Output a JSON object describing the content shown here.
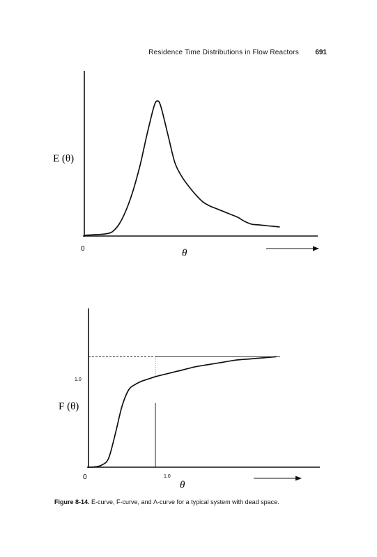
{
  "header": {
    "running_title": "Residence Time Distributions in Flow Reactors",
    "page_number": "691"
  },
  "caption": {
    "label": "Figure 8-14.",
    "text": " E-curve, F-curve, and Λ-curve for a typical system with dead space."
  },
  "chart_data": [
    {
      "type": "line",
      "ylabel": "E (θ)",
      "xlabel": "θ",
      "x_origin_label": "0",
      "xlim": [
        0,
        3.0
      ],
      "ylim": [
        0,
        1.0
      ],
      "grid": false,
      "series": [
        {
          "x": [
            0.0,
            0.1,
            0.2,
            0.3,
            0.4,
            0.5,
            0.6,
            0.7,
            0.8,
            0.9,
            1.0,
            1.05,
            1.1,
            1.2,
            1.3,
            1.4,
            1.5,
            1.6,
            1.7,
            1.8,
            1.9,
            2.0,
            2.1,
            2.2,
            2.3,
            2.4,
            2.5,
            2.6,
            2.7,
            2.8
          ],
          "y": [
            0.0,
            0.003,
            0.006,
            0.01,
            0.025,
            0.08,
            0.18,
            0.32,
            0.5,
            0.72,
            0.92,
            0.96,
            0.92,
            0.72,
            0.52,
            0.42,
            0.35,
            0.29,
            0.24,
            0.21,
            0.19,
            0.17,
            0.15,
            0.13,
            0.1,
            0.08,
            0.075,
            0.07,
            0.065,
            0.06
          ]
        }
      ]
    },
    {
      "type": "line",
      "ylabel": "F (θ)",
      "xlabel": "θ",
      "x_origin_label": "0",
      "y_tick_label": "1.0",
      "x_tick_label": "1.0",
      "xlim": [
        0,
        3.0
      ],
      "ylim": [
        0,
        1.4
      ],
      "grid": false,
      "series": [
        {
          "x": [
            0.0,
            0.1,
            0.2,
            0.3,
            0.4,
            0.5,
            0.6,
            0.7,
            0.8,
            0.9,
            1.0,
            1.2,
            1.4,
            1.6,
            1.8,
            2.0,
            2.2,
            2.4,
            2.6,
            2.8
          ],
          "y": [
            0.0,
            0.003,
            0.02,
            0.08,
            0.3,
            0.55,
            0.7,
            0.75,
            0.78,
            0.8,
            0.82,
            0.85,
            0.88,
            0.91,
            0.93,
            0.95,
            0.97,
            0.98,
            0.99,
            1.0
          ]
        }
      ]
    }
  ]
}
